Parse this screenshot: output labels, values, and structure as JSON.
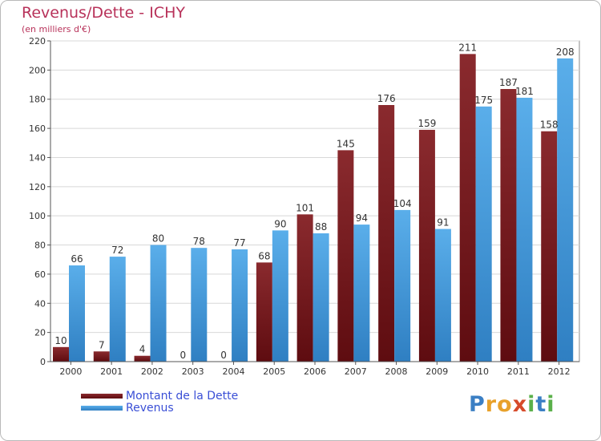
{
  "chart_data": {
    "type": "bar",
    "title": "Revenus/Dette - ICHY",
    "subtitle": "(en milliers d'€)",
    "xlabel": "",
    "ylabel": "",
    "ylim": [
      0,
      220
    ],
    "yticks": [
      0,
      20,
      40,
      60,
      80,
      100,
      120,
      140,
      160,
      180,
      200,
      220
    ],
    "grid": true,
    "legend_position": "bottom-left",
    "categories": [
      "2000",
      "2001",
      "2002",
      "2003",
      "2004",
      "2005",
      "2006",
      "2007",
      "2008",
      "2009",
      "2010",
      "2011",
      "2012"
    ],
    "series": [
      {
        "name": "Montant de la Dette",
        "color": "#7a1a1e",
        "values": [
          10,
          7,
          4,
          0,
          0,
          68,
          101,
          145,
          176,
          159,
          211,
          187,
          158
        ]
      },
      {
        "name": "Revenus",
        "color": "#4a9fe0",
        "values": [
          66,
          72,
          80,
          78,
          77,
          90,
          88,
          94,
          104,
          91,
          175,
          181,
          208
        ]
      }
    ]
  },
  "logo": {
    "letters": [
      {
        "ch": "P",
        "color": "#3b7fc4"
      },
      {
        "ch": "r",
        "color": "#e8a12a"
      },
      {
        "ch": "o",
        "color": "#e8a12a"
      },
      {
        "ch": "x",
        "color": "#d64a2a"
      },
      {
        "ch": "i",
        "color": "#5ab04a"
      },
      {
        "ch": "t",
        "color": "#3b7fc4"
      },
      {
        "ch": "i",
        "color": "#5ab04a"
      }
    ]
  }
}
